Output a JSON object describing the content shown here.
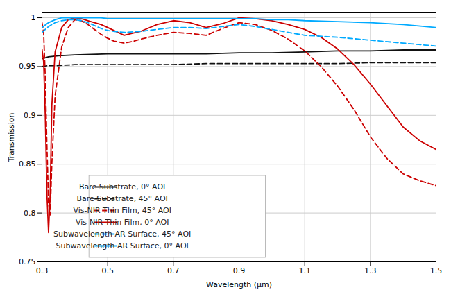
{
  "chart_data": {
    "type": "line",
    "xlabel": "Wavelength (μm)",
    "ylabel": "Transmission",
    "xlim": [
      0.3,
      1.5
    ],
    "ylim": [
      0.75,
      1.005
    ],
    "xticks": [
      0.3,
      0.5,
      0.7,
      0.9,
      1.1,
      1.3,
      1.5
    ],
    "yticks": [
      0.75,
      0.8,
      0.85,
      0.9,
      0.95,
      1
    ],
    "grid": true,
    "legend": "lower left",
    "series": [
      {
        "name": "Bare Substrate, 0° AOI",
        "color": "#111111",
        "line_style": "solid",
        "x": [
          0.3,
          0.32,
          0.35,
          0.4,
          0.5,
          0.6,
          0.7,
          0.8,
          0.9,
          1.0,
          1.1,
          1.2,
          1.3,
          1.4,
          1.5
        ],
        "values": [
          0.958,
          0.96,
          0.961,
          0.962,
          0.963,
          0.963,
          0.963,
          0.963,
          0.964,
          0.964,
          0.965,
          0.966,
          0.966,
          0.967,
          0.967
        ]
      },
      {
        "name": "Bare Substrate, 45° AOI",
        "color": "#111111",
        "line_style": "dashed",
        "x": [
          0.3,
          0.32,
          0.35,
          0.4,
          0.5,
          0.6,
          0.7,
          0.8,
          0.9,
          1.0,
          1.1,
          1.2,
          1.3,
          1.4,
          1.5
        ],
        "values": [
          0.95,
          0.951,
          0.951,
          0.952,
          0.952,
          0.952,
          0.952,
          0.953,
          0.953,
          0.953,
          0.953,
          0.953,
          0.954,
          0.954,
          0.954
        ]
      },
      {
        "name": "Vis-NIR Thin Film, 45° AOI",
        "color": "#CC0000",
        "line_style": "dashed",
        "x": [
          0.3,
          0.305,
          0.31,
          0.315,
          0.32,
          0.325,
          0.33,
          0.34,
          0.36,
          0.38,
          0.4,
          0.42,
          0.44,
          0.46,
          0.48,
          0.5,
          0.52,
          0.55,
          0.58,
          0.6,
          0.65,
          0.7,
          0.75,
          0.8,
          0.85,
          0.9,
          0.95,
          1.0,
          1.05,
          1.1,
          1.15,
          1.2,
          1.25,
          1.3,
          1.35,
          1.4,
          1.45,
          1.5
        ],
        "values": [
          0.995,
          0.985,
          0.94,
          0.87,
          0.81,
          0.798,
          0.85,
          0.92,
          0.97,
          0.99,
          0.998,
          0.997,
          0.993,
          0.988,
          0.983,
          0.979,
          0.976,
          0.974,
          0.976,
          0.978,
          0.982,
          0.985,
          0.984,
          0.982,
          0.989,
          0.995,
          0.993,
          0.987,
          0.978,
          0.966,
          0.95,
          0.93,
          0.906,
          0.878,
          0.856,
          0.84,
          0.833,
          0.828
        ]
      },
      {
        "name": "Vis-NIR Thin Film, 0° AOI",
        "color": "#CC0000",
        "line_style": "solid",
        "x": [
          0.3,
          0.305,
          0.31,
          0.315,
          0.32,
          0.325,
          0.33,
          0.34,
          0.36,
          0.38,
          0.4,
          0.42,
          0.44,
          0.46,
          0.48,
          0.5,
          0.55,
          0.6,
          0.65,
          0.7,
          0.75,
          0.8,
          0.85,
          0.9,
          0.95,
          1.0,
          1.05,
          1.1,
          1.15,
          1.2,
          1.25,
          1.3,
          1.35,
          1.4,
          1.45,
          1.5
        ],
        "values": [
          0.968,
          0.955,
          0.9,
          0.82,
          0.78,
          0.82,
          0.91,
          0.965,
          0.99,
          0.998,
          1.0,
          0.999,
          0.997,
          0.995,
          0.993,
          0.99,
          0.982,
          0.986,
          0.993,
          0.997,
          0.995,
          0.99,
          0.994,
          1.0,
          0.999,
          0.997,
          0.993,
          0.988,
          0.98,
          0.968,
          0.952,
          0.932,
          0.91,
          0.888,
          0.874,
          0.865
        ]
      },
      {
        "name": "Subwavelength AR Surface, 45° AOI",
        "color": "#00AAFF",
        "line_style": "dashed",
        "x": [
          0.3,
          0.32,
          0.34,
          0.36,
          0.38,
          0.4,
          0.42,
          0.44,
          0.46,
          0.48,
          0.5,
          0.52,
          0.55,
          0.6,
          0.65,
          0.7,
          0.75,
          0.8,
          0.85,
          0.9,
          0.95,
          1.0,
          1.05,
          1.1,
          1.2,
          1.3,
          1.4,
          1.5
        ],
        "values": [
          0.985,
          0.991,
          0.995,
          0.997,
          0.998,
          0.998,
          0.997,
          0.995,
          0.992,
          0.989,
          0.987,
          0.986,
          0.985,
          0.986,
          0.988,
          0.99,
          0.99,
          0.989,
          0.991,
          0.993,
          0.991,
          0.988,
          0.985,
          0.982,
          0.98,
          0.977,
          0.974,
          0.971
        ]
      },
      {
        "name": "Subwavelength AR Surface, 0° AOI",
        "color": "#00AAFF",
        "line_style": "solid",
        "x": [
          0.3,
          0.32,
          0.34,
          0.36,
          0.38,
          0.4,
          0.42,
          0.44,
          0.46,
          0.48,
          0.5,
          0.55,
          0.6,
          0.65,
          0.7,
          0.75,
          0.8,
          0.85,
          0.9,
          0.95,
          1.0,
          1.05,
          1.1,
          1.2,
          1.3,
          1.4,
          1.5
        ],
        "values": [
          0.99,
          0.995,
          0.998,
          1.0,
          1.0,
          1.0,
          1.0,
          1.0,
          1.0,
          1.0,
          0.999,
          0.999,
          0.999,
          0.999,
          0.999,
          0.999,
          0.999,
          0.999,
          0.999,
          0.999,
          0.998,
          0.998,
          0.997,
          0.996,
          0.995,
          0.993,
          0.99
        ]
      }
    ]
  }
}
